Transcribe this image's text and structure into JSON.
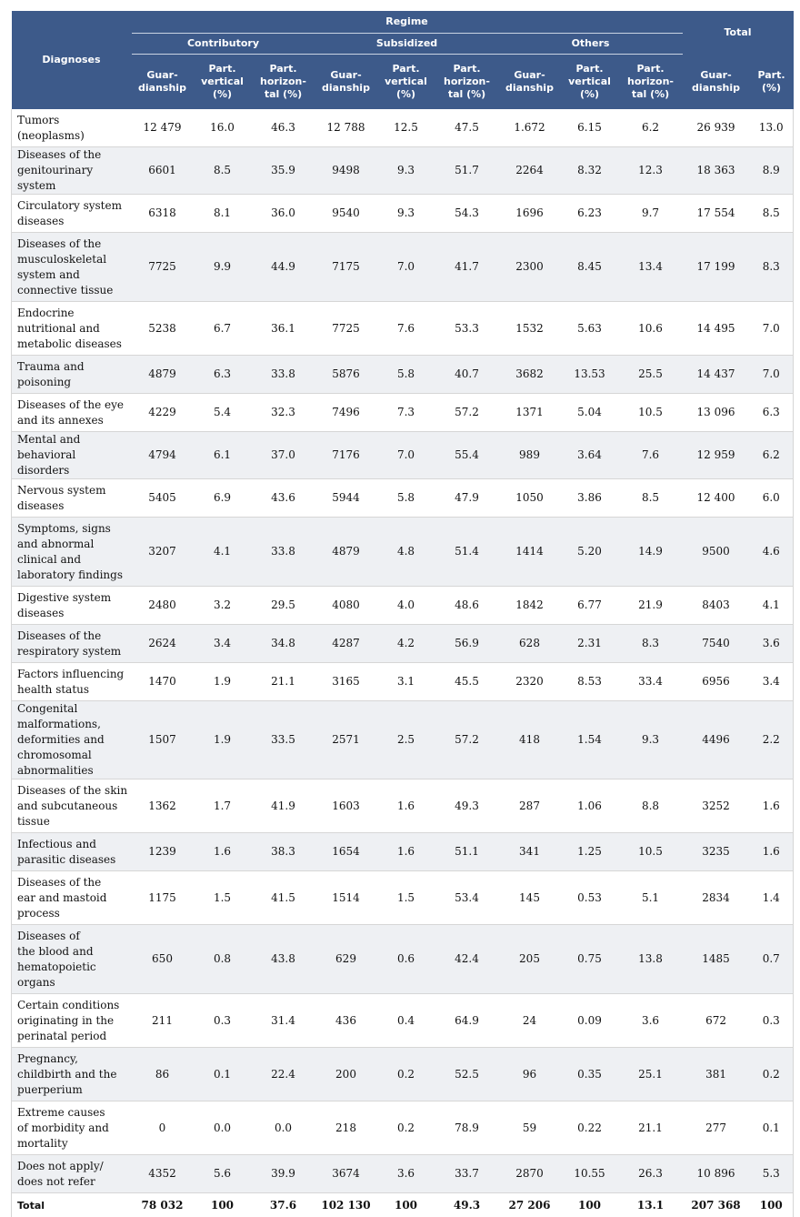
{
  "header": {
    "diagnoses": "Diagnoses",
    "regime": "Regime",
    "total": "Total",
    "contributory": "Contributory",
    "subsidized": "Subsidized",
    "others": "Others",
    "guardianship": "Guar-\ndianship",
    "part_vertical": "Part.\nvertical\n(%)",
    "part_horizontal": "Part.\nhorizon-\ntal (%)",
    "part": "Part.\n(%)"
  },
  "rows": [
    {
      "diagnosis": "Tumors\n(neoplasms)",
      "c_g": "12 479",
      "c_v": "16.0",
      "c_h": "46.3",
      "s_g": "12 788",
      "s_v": "12.5",
      "s_h": "47.5",
      "o_g": "1.672",
      "o_v": "6.15",
      "o_h": "6.2",
      "t_g": "26 939",
      "t_p": "13.0"
    },
    {
      "diagnosis": "Diseases of the\ngenitourinary system",
      "c_g": "6601",
      "c_v": "8.5",
      "c_h": "35.9",
      "s_g": "9498",
      "s_v": "9.3",
      "s_h": "51.7",
      "o_g": "2264",
      "o_v": "8.32",
      "o_h": "12.3",
      "t_g": "18 363",
      "t_p": "8.9"
    },
    {
      "diagnosis": "Circulatory system\ndiseases",
      "c_g": "6318",
      "c_v": "8.1",
      "c_h": "36.0",
      "s_g": "9540",
      "s_v": "9.3",
      "s_h": "54.3",
      "o_g": "1696",
      "o_v": "6.23",
      "o_h": "9.7",
      "t_g": "17 554",
      "t_p": "8.5"
    },
    {
      "diagnosis": "Diseases of the\nmusculoskeletal\nsystem and\nconnective tissue",
      "c_g": "7725",
      "c_v": "9.9",
      "c_h": "44.9",
      "s_g": "7175",
      "s_v": "7.0",
      "s_h": "41.7",
      "o_g": "2300",
      "o_v": "8.45",
      "o_h": "13.4",
      "t_g": "17 199",
      "t_p": "8.3"
    },
    {
      "diagnosis": "Endocrine\nnutritional and\nmetabolic diseases",
      "c_g": "5238",
      "c_v": "6.7",
      "c_h": "36.1",
      "s_g": "7725",
      "s_v": "7.6",
      "s_h": "53.3",
      "o_g": "1532",
      "o_v": "5.63",
      "o_h": "10.6",
      "t_g": "14 495",
      "t_p": "7.0"
    },
    {
      "diagnosis": "Trauma and\npoisoning",
      "c_g": "4879",
      "c_v": "6.3",
      "c_h": "33.8",
      "s_g": "5876",
      "s_v": "5.8",
      "s_h": "40.7",
      "o_g": "3682",
      "o_v": "13.53",
      "o_h": "25.5",
      "t_g": "14 437",
      "t_p": "7.0"
    },
    {
      "diagnosis": "Diseases of the eye\nand its annexes",
      "c_g": "4229",
      "c_v": "5.4",
      "c_h": "32.3",
      "s_g": "7496",
      "s_v": "7.3",
      "s_h": "57.2",
      "o_g": "1371",
      "o_v": "5.04",
      "o_h": "10.5",
      "t_g": "13 096",
      "t_p": "6.3"
    },
    {
      "diagnosis": "Mental and\nbehavioral disorders",
      "c_g": "4794",
      "c_v": "6.1",
      "c_h": "37.0",
      "s_g": "7176",
      "s_v": "7.0",
      "s_h": "55.4",
      "o_g": "989",
      "o_v": "3.64",
      "o_h": "7.6",
      "t_g": "12 959",
      "t_p": "6.2"
    },
    {
      "diagnosis": "Nervous system\ndiseases",
      "c_g": "5405",
      "c_v": "6.9",
      "c_h": "43.6",
      "s_g": "5944",
      "s_v": "5.8",
      "s_h": "47.9",
      "o_g": "1050",
      "o_v": "3.86",
      "o_h": "8.5",
      "t_g": "12 400",
      "t_p": "6.0"
    },
    {
      "diagnosis": "Symptoms, signs\nand abnormal\nclinical and\nlaboratory findings",
      "c_g": "3207",
      "c_v": "4.1",
      "c_h": "33.8",
      "s_g": "4879",
      "s_v": "4.8",
      "s_h": "51.4",
      "o_g": "1414",
      "o_v": "5.20",
      "o_h": "14.9",
      "t_g": "9500",
      "t_p": "4.6"
    },
    {
      "diagnosis": "Digestive system\ndiseases",
      "c_g": "2480",
      "c_v": "3.2",
      "c_h": "29.5",
      "s_g": "4080",
      "s_v": "4.0",
      "s_h": "48.6",
      "o_g": "1842",
      "o_v": "6.77",
      "o_h": "21.9",
      "t_g": "8403",
      "t_p": "4.1"
    },
    {
      "diagnosis": "Diseases of the\nrespiratory system",
      "c_g": "2624",
      "c_v": "3.4",
      "c_h": "34.8",
      "s_g": "4287",
      "s_v": "4.2",
      "s_h": "56.9",
      "o_g": "628",
      "o_v": "2.31",
      "o_h": "8.3",
      "t_g": "7540",
      "t_p": "3.6"
    },
    {
      "diagnosis": "Factors influencing\nhealth status",
      "c_g": "1470",
      "c_v": "1.9",
      "c_h": "21.1",
      "s_g": "3165",
      "s_v": "3.1",
      "s_h": "45.5",
      "o_g": "2320",
      "o_v": "8.53",
      "o_h": "33.4",
      "t_g": "6956",
      "t_p": "3.4"
    },
    {
      "diagnosis": "Congenital\nmalformations,\ndeformities and\nchromosomal\nabnormalities",
      "c_g": "1507",
      "c_v": "1.9",
      "c_h": "33.5",
      "s_g": "2571",
      "s_v": "2.5",
      "s_h": "57.2",
      "o_g": "418",
      "o_v": "1.54",
      "o_h": "9.3",
      "t_g": "4496",
      "t_p": "2.2"
    },
    {
      "diagnosis": "Diseases of the skin\nand subcutaneous\ntissue",
      "c_g": "1362",
      "c_v": "1.7",
      "c_h": "41.9",
      "s_g": "1603",
      "s_v": "1.6",
      "s_h": "49.3",
      "o_g": "287",
      "o_v": "1.06",
      "o_h": "8.8",
      "t_g": "3252",
      "t_p": "1.6"
    },
    {
      "diagnosis": "Infectious and\nparasitic diseases",
      "c_g": "1239",
      "c_v": "1.6",
      "c_h": "38.3",
      "s_g": "1654",
      "s_v": "1.6",
      "s_h": "51.1",
      "o_g": "341",
      "o_v": "1.25",
      "o_h": "10.5",
      "t_g": "3235",
      "t_p": "1.6"
    },
    {
      "diagnosis": "Diseases of the\near and mastoid\nprocess",
      "c_g": "1175",
      "c_v": "1.5",
      "c_h": "41.5",
      "s_g": "1514",
      "s_v": "1.5",
      "s_h": "53.4",
      "o_g": "145",
      "o_v": "0.53",
      "o_h": "5.1",
      "t_g": "2834",
      "t_p": "1.4"
    },
    {
      "diagnosis": "Diseases of\nthe blood and\nhematopoietic\norgans",
      "c_g": "650",
      "c_v": "0.8",
      "c_h": "43.8",
      "s_g": "629",
      "s_v": "0.6",
      "s_h": "42.4",
      "o_g": "205",
      "o_v": "0.75",
      "o_h": "13.8",
      "t_g": "1485",
      "t_p": "0.7"
    },
    {
      "diagnosis": "Certain conditions\noriginating in the\nperinatal period",
      "c_g": "211",
      "c_v": "0.3",
      "c_h": "31.4",
      "s_g": "436",
      "s_v": "0.4",
      "s_h": "64.9",
      "o_g": "24",
      "o_v": "0.09",
      "o_h": "3.6",
      "t_g": "672",
      "t_p": "0.3"
    },
    {
      "diagnosis": "Pregnancy,\nchildbirth and the\npuerperium",
      "c_g": "86",
      "c_v": "0.1",
      "c_h": "22.4",
      "s_g": "200",
      "s_v": "0.2",
      "s_h": "52.5",
      "o_g": "96",
      "o_v": "0.35",
      "o_h": "25.1",
      "t_g": "381",
      "t_p": "0.2"
    },
    {
      "diagnosis": "Extreme causes\nof morbidity and\nmortality",
      "c_g": "0",
      "c_v": "0.0",
      "c_h": "0.0",
      "s_g": "218",
      "s_v": "0.2",
      "s_h": "78.9",
      "o_g": "59",
      "o_v": "0.22",
      "o_h": "21.1",
      "t_g": "277",
      "t_p": "0.1"
    },
    {
      "diagnosis": "Does not apply/\ndoes not refer",
      "c_g": "4352",
      "c_v": "5.6",
      "c_h": "39.9",
      "s_g": "3674",
      "s_v": "3.6",
      "s_h": "33.7",
      "o_g": "2870",
      "o_v": "10.55",
      "o_h": "26.3",
      "t_g": "10 896",
      "t_p": "5.3"
    }
  ],
  "total_row": {
    "diagnosis": "Total",
    "c_g": "78 032",
    "c_v": "100",
    "c_h": "37.6",
    "s_g": "102 130",
    "s_v": "100",
    "s_h": "49.3",
    "o_g": "27 206",
    "o_v": "100",
    "o_h": "13.1",
    "t_g": "207 368",
    "t_p": "100"
  }
}
